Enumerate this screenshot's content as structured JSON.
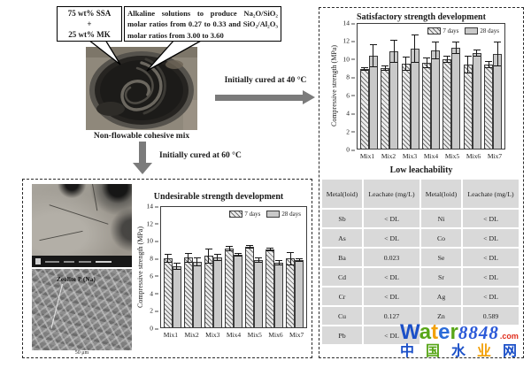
{
  "flow": {
    "ssa_box": "75 wt% SSA\n+\n25 wt% MK",
    "alkaline_box": "Alkaline solutions to produce Na₂O/SiO₂ molar ratios from 0.27 to 0.33 and SiO₂/Al₂O₃ molar ratios from 3.00 to 3.60",
    "photo_caption": "Non-flowable cohesive mix",
    "arrow_right_label": "Initially cured at 40 °C",
    "arrow_down_label": "Initially cured at 60 °C"
  },
  "sem": {
    "label": "Zeolite P (Na)",
    "scale_bar": "50 μm"
  },
  "chart_data": [
    {
      "type": "bar",
      "title": "Satisfactory strength development",
      "ylabel": "Compressive strength (MPa)",
      "xlabel": "",
      "ylim": [
        0,
        14
      ],
      "yticks": [
        0,
        2,
        4,
        6,
        8,
        10,
        12,
        14
      ],
      "grid": false,
      "legend_position": "top-right",
      "categories": [
        "Mix1",
        "Mix2",
        "Mix3",
        "Mix4",
        "Mix5",
        "Mix6",
        "Mix7"
      ],
      "series": [
        {
          "name": "7 days",
          "values": [
            8.9,
            9.0,
            9.5,
            9.6,
            10.0,
            9.4,
            9.4
          ],
          "errors": [
            0.2,
            0.3,
            0.8,
            0.6,
            0.4,
            1.0,
            0.4
          ]
        },
        {
          "name": "28 days",
          "values": [
            10.4,
            10.9,
            11.2,
            11.0,
            11.3,
            10.7,
            10.6
          ],
          "errors": [
            1.3,
            1.3,
            1.6,
            1.0,
            0.7,
            0.4,
            1.4
          ]
        }
      ]
    },
    {
      "type": "bar",
      "title": "Undesirable strength development",
      "ylabel": "Compressive strength (MPa)",
      "xlabel": "",
      "ylim": [
        0,
        14
      ],
      "yticks": [
        0,
        2,
        4,
        6,
        8,
        10,
        12,
        14
      ],
      "grid": false,
      "legend_position": "top-right",
      "categories": [
        "Mix1",
        "Mix2",
        "Mix3",
        "Mix4",
        "Mix5",
        "Mix6",
        "Mix7"
      ],
      "series": [
        {
          "name": "7 days",
          "values": [
            8.0,
            8.1,
            8.3,
            9.2,
            9.4,
            9.1,
            8.0
          ],
          "errors": [
            0.5,
            0.6,
            0.9,
            0.3,
            0.2,
            0.2,
            0.8
          ]
        },
        {
          "name": "28 days",
          "values": [
            7.1,
            7.6,
            8.1,
            8.4,
            7.8,
            7.5,
            7.8
          ],
          "errors": [
            0.4,
            0.5,
            0.4,
            0.2,
            0.3,
            0.3,
            0.2
          ]
        }
      ]
    }
  ],
  "leach_section": {
    "title": "Low leachability",
    "table": {
      "headers": [
        "Metal(loid)",
        "Leachate (mg/L)",
        "Metal(loid)",
        "Leachate (mg/L)"
      ],
      "rows": [
        [
          "Sb",
          "< DL",
          "Ni",
          "< DL"
        ],
        [
          "As",
          "< DL",
          "Co",
          "< DL"
        ],
        [
          "Ba",
          "0.023",
          "Se",
          "< DL"
        ],
        [
          "Cd",
          "< DL",
          "Sr",
          "< DL"
        ],
        [
          "Cr",
          "< DL",
          "Ag",
          "< DL"
        ],
        [
          "Cu",
          "0.127",
          "Zn",
          "0.589"
        ],
        [
          "Pb",
          "< DL",
          "",
          ""
        ]
      ]
    }
  },
  "watermark": {
    "brand_letters": [
      {
        "ch": "W",
        "color": "#1b50c8"
      },
      {
        "ch": "a",
        "color": "#58a618"
      },
      {
        "ch": "t",
        "color": "#f2a10b"
      },
      {
        "ch": "e",
        "color": "#2b6bd8"
      },
      {
        "ch": "r",
        "color": "#58a618"
      }
    ],
    "number": "8848",
    "number_color": "#2b59d8",
    "tld": ".com",
    "tld_color": "#e02d1c",
    "cn_chars": [
      {
        "ch": "中",
        "color": "#1b50c8"
      },
      {
        "ch": "国",
        "color": "#58a618"
      },
      {
        "ch": "水",
        "color": "#1b50c8"
      },
      {
        "ch": "业",
        "color": "#f2a10b"
      },
      {
        "ch": "网",
        "color": "#1b50c8"
      }
    ]
  },
  "colors": {
    "bar_28d_fill": "#c9c9c9",
    "bar_7d_hatch": "#6f6f6f",
    "arrow": "#7b7b7b",
    "table_cell": "#d9d9d9"
  }
}
